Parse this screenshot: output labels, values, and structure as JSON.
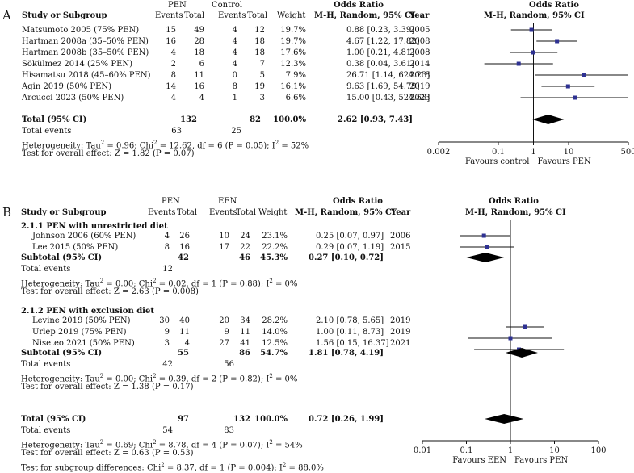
{
  "panelA": {
    "label": "A",
    "headers": {
      "study": "Study or Subgroup",
      "group1": "PEN",
      "group2": "Control",
      "events": "Events",
      "total": "Total",
      "weight": "Weight",
      "or_title": "Odds Ratio",
      "or_sub": "M-H, Random, 95% CI",
      "year": "Year",
      "plot_title": "Odds Ratio",
      "plot_sub": "M-H, Random, 95% CI"
    },
    "studies": [
      {
        "name": "Matsumoto 2005 (75% PEN)",
        "e1": "15",
        "t1": "49",
        "e2": "4",
        "t2": "12",
        "weight": "19.7%",
        "ci": "0.88 [0.23, 3.39]",
        "year": "2005",
        "or": 0.88,
        "lo": 0.23,
        "hi": 3.39
      },
      {
        "name": "Hartman 2008a (35–50% PEN)",
        "e1": "16",
        "t1": "28",
        "e2": "4",
        "t2": "18",
        "weight": "19.7%",
        "ci": "4.67 [1.22, 17.82]",
        "year": "2008",
        "or": 4.67,
        "lo": 1.22,
        "hi": 17.82
      },
      {
        "name": "Hartman 2008b (35–50% PEN)",
        "e1": "4",
        "t1": "18",
        "e2": "4",
        "t2": "18",
        "weight": "17.6%",
        "ci": "1.00 [0.21, 4.81]",
        "year": "2008",
        "or": 1.0,
        "lo": 0.21,
        "hi": 4.81
      },
      {
        "name": "Sökülmez 2014 (25% PEN)",
        "e1": "2",
        "t1": "6",
        "e2": "4",
        "t2": "7",
        "weight": "12.3%",
        "ci": "0.38 [0.04, 3.61]",
        "year": "2014",
        "or": 0.38,
        "lo": 0.04,
        "hi": 3.61
      },
      {
        "name": "Hisamatsu 2018 (45–60% PEN)",
        "e1": "8",
        "t1": "11",
        "e2": "0",
        "t2": "5",
        "weight": "7.9%",
        "ci": "26.71 [1.14, 624.23]",
        "year": "2018",
        "or": 26.71,
        "lo": 1.14,
        "hi": 624.23
      },
      {
        "name": "Agin 2019 (50% PEN)",
        "e1": "14",
        "t1": "16",
        "e2": "8",
        "t2": "19",
        "weight": "16.1%",
        "ci": "9.63 [1.69, 54.79]",
        "year": "2019",
        "or": 9.63,
        "lo": 1.69,
        "hi": 54.79
      },
      {
        "name": "Arcucci 2023 (50% PEN)",
        "e1": "4",
        "t1": "4",
        "e2": "1",
        "t2": "3",
        "weight": "6.6%",
        "ci": "15.00 [0.43, 524.53]",
        "year": "2023",
        "or": 15.0,
        "lo": 0.43,
        "hi": 524.53
      }
    ],
    "total": {
      "label": "Total (95% CI)",
      "t1": "132",
      "t2": "82",
      "weight": "100.0%",
      "ci": "2.62 [0.93, 7.43]",
      "or": 2.62,
      "lo": 0.93,
      "hi": 7.43
    },
    "total_events": {
      "label": "Total events",
      "e1": "63",
      "e2": "25"
    },
    "het_pre": "Heterogeneity: Tau",
    "het_mid": " = 0.96; Chi",
    "het_post": " = 12.62, df = 6 (P = 0.05); I",
    "het_end": " = 52%",
    "overall": "Test for overall effect: Z = 1.82 (P = 0.07)",
    "axis": {
      "ticks": [
        "0.002",
        "0.1",
        "1",
        "10",
        "500"
      ],
      "favours_left": "Favours control",
      "favours_right": "Favours PEN"
    }
  },
  "panelB": {
    "label": "B",
    "headers": {
      "study": "Study or Subgroup",
      "group1": "PEN",
      "group2": "EEN",
      "events": "Events",
      "total": "Total",
      "weight": "Weight",
      "or_title": "Odds Ratio",
      "or_sub": "M-H, Random, 95% CI",
      "year": "Year",
      "plot_title": "Odds Ratio",
      "plot_sub": "M-H, Random, 95% CI"
    },
    "sub1": {
      "title": "2.1.1 PEN with unrestricted diet",
      "studies": [
        {
          "name": "Johnson 2006 (60% PEN)",
          "e1": "4",
          "t1": "26",
          "e2": "10",
          "t2": "24",
          "weight": "23.1%",
          "ci": "0.25 [0.07, 0.97]",
          "year": "2006",
          "or": 0.25,
          "lo": 0.07,
          "hi": 0.97
        },
        {
          "name": "Lee 2015 (50% PEN)",
          "e1": "8",
          "t1": "16",
          "e2": "17",
          "t2": "22",
          "weight": "22.2%",
          "ci": "0.29 [0.07, 1.19]",
          "year": "2015",
          "or": 0.29,
          "lo": 0.07,
          "hi": 1.19
        }
      ],
      "subtotal": {
        "label": "Subtotal (95% CI)",
        "t1": "42",
        "t2": "46",
        "weight": "45.3%",
        "ci": "0.27 [0.10, 0.72]",
        "or": 0.27,
        "lo": 0.1,
        "hi": 0.72
      },
      "total_events": {
        "label": "Total events",
        "e1": "12",
        "e2": ""
      },
      "het_pre": "Heterogeneity: Tau",
      "het_mid": " = 0.00; Chi",
      "het_post": " = 0.02, df = 1 (P = 0.88); I",
      "het_end": " = 0%",
      "overall": "Test for overall effect: Z = 2.63 (P = 0.008)"
    },
    "sub2": {
      "title": "2.1.2 PEN with exclusion diet",
      "studies": [
        {
          "name": "Levine 2019 (50% PEN)",
          "e1": "30",
          "t1": "40",
          "e2": "20",
          "t2": "34",
          "weight": "28.2%",
          "ci": "2.10 [0.78, 5.65]",
          "year": "2019",
          "or": 2.1,
          "lo": 0.78,
          "hi": 5.65
        },
        {
          "name": "Urlep 2019 (75% PEN)",
          "e1": "9",
          "t1": "11",
          "e2": "9",
          "t2": "11",
          "weight": "14.0%",
          "ci": "1.00 [0.11, 8.73]",
          "year": "2019",
          "or": 1.0,
          "lo": 0.11,
          "hi": 8.73
        },
        {
          "name": "Niseteo 2021 (50% PEN)",
          "e1": "3",
          "t1": "4",
          "e2": "27",
          "t2": "41",
          "weight": "12.5%",
          "ci": "1.56 [0.15, 16.37]",
          "year": "2021",
          "or": 1.56,
          "lo": 0.15,
          "hi": 16.37
        }
      ],
      "subtotal": {
        "label": "Subtotal (95% CI)",
        "t1": "55",
        "t2": "86",
        "weight": "54.7%",
        "ci": "1.81 [0.78, 4.19]",
        "or": 1.81,
        "lo": 0.78,
        "hi": 4.19
      },
      "total_events": {
        "label": "Total events",
        "e1": "42",
        "e2": "56"
      },
      "het_pre": "Heterogeneity: Tau",
      "het_mid": " = 0.00; Chi",
      "het_post": " = 0.39, df = 2 (P = 0.82); I",
      "het_end": " = 0%",
      "overall": "Test for overall effect: Z = 1.38 (P = 0.17)"
    },
    "total": {
      "label": "Total (95% CI)",
      "t1": "97",
      "t2": "132",
      "weight": "100.0%",
      "ci": "0.72 [0.26, 1.99]",
      "or": 0.72,
      "lo": 0.26,
      "hi": 1.99
    },
    "total_events": {
      "label": "Total events",
      "e1": "54",
      "e2": "83"
    },
    "het_pre": "Heterogeneity: Tau",
    "het_mid": " = 0.69; Chi",
    "het_post": " = 8.78, df = 4 (P = 0.07); I",
    "het_end": " = 54%",
    "overall": "Test for overall effect: Z = 0.63 (P = 0.53)",
    "subgroup_pre": "Test for subgroup differences: Chi",
    "subgroup_post": " = 8.37, df = 1 (P = 0.004); I",
    "subgroup_end": " = 88.0%",
    "axis": {
      "ticks": [
        "0.01",
        "0.1",
        "1",
        "10",
        "100"
      ],
      "favours_left": "Favours EEN",
      "favours_right": "Favours PEN"
    }
  },
  "sup2": "2",
  "chart_data": [
    {
      "type": "scatter",
      "title": "Odds Ratio M-H, Random, 95% CI (PEN vs Control)",
      "xscale": "log",
      "xlim": [
        0.002,
        500
      ],
      "categories": [
        "Matsumoto 2005 (75% PEN)",
        "Hartman 2008a (35–50% PEN)",
        "Hartman 2008b (35–50% PEN)",
        "Sökülmez 2014 (25% PEN)",
        "Hisamatsu 2018 (45–60% PEN)",
        "Agin 2019 (50% PEN)",
        "Arcucci 2023 (50% PEN)",
        "Total (95% CI)"
      ],
      "values": [
        0.88,
        4.67,
        1.0,
        0.38,
        26.71,
        9.63,
        15.0,
        2.62
      ],
      "ci_low": [
        0.23,
        1.22,
        0.21,
        0.04,
        1.14,
        1.69,
        0.43,
        0.93
      ],
      "ci_high": [
        3.39,
        17.82,
        4.81,
        3.61,
        624.23,
        54.79,
        524.53,
        7.43
      ],
      "xlabel_left": "Favours control",
      "xlabel_right": "Favours PEN"
    },
    {
      "type": "scatter",
      "title": "Odds Ratio M-H, Random, 95% CI (PEN vs EEN)",
      "xscale": "log",
      "xlim": [
        0.01,
        100
      ],
      "categories": [
        "Johnson 2006 (60% PEN)",
        "Lee 2015 (50% PEN)",
        "Subtotal 2.1.1",
        "Levine 2019 (50% PEN)",
        "Urlep 2019 (75% PEN)",
        "Niseteo 2021 (50% PEN)",
        "Subtotal 2.1.2",
        "Total (95% CI)"
      ],
      "values": [
        0.25,
        0.29,
        0.27,
        2.1,
        1.0,
        1.56,
        1.81,
        0.72
      ],
      "ci_low": [
        0.07,
        0.07,
        0.1,
        0.78,
        0.11,
        0.15,
        0.78,
        0.26
      ],
      "ci_high": [
        0.97,
        1.19,
        0.72,
        5.65,
        8.73,
        16.37,
        4.19,
        1.99
      ],
      "xlabel_left": "Favours EEN",
      "xlabel_right": "Favours PEN"
    }
  ]
}
